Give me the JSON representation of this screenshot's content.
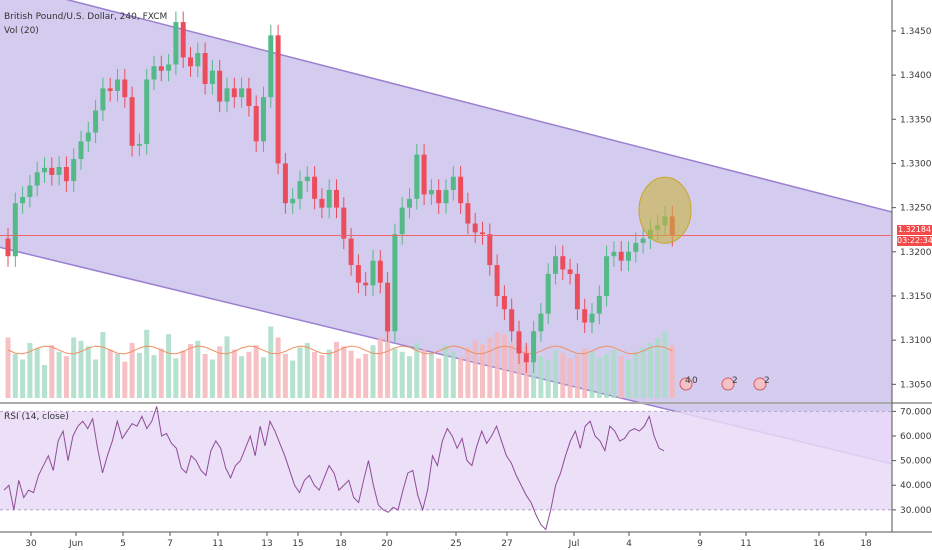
{
  "chart_data": [
    {
      "type": "candlestick",
      "title": "British Pound/U.S. Dollar, 240, FXCM",
      "volume_label": "Vol (20)",
      "price_tick_labels": [
        "1.34500",
        "1.34000",
        "1.33500",
        "1.33000",
        "1.32500",
        "1.32000",
        "1.31500",
        "1.31000",
        "1.30500"
      ],
      "price_ticks": [
        1.345,
        1.34,
        1.335,
        1.33,
        1.325,
        1.32,
        1.315,
        1.31,
        1.305
      ],
      "ylim": [
        1.303,
        1.3485
      ],
      "last_price": "1.32184",
      "last_price_value": 1.32184,
      "countdown": "03:22:34",
      "x_tick_labels": [
        "30",
        "Jun",
        "5",
        "7",
        "11",
        "13",
        "15",
        "18",
        "20",
        "25",
        "27",
        "Jul",
        "4",
        "9",
        "11",
        "16",
        "18"
      ],
      "ohlc_close": [
        1.3195,
        1.3255,
        1.3262,
        1.3275,
        1.329,
        1.3295,
        1.3287,
        1.3296,
        1.328,
        1.3305,
        1.3325,
        1.3335,
        1.336,
        1.3385,
        1.3382,
        1.3395,
        1.3375,
        1.332,
        1.3322,
        1.3395,
        1.341,
        1.3405,
        1.3412,
        1.346,
        1.342,
        1.341,
        1.3425,
        1.339,
        1.3405,
        1.337,
        1.3385,
        1.3375,
        1.3385,
        1.3365,
        1.3325,
        1.3375,
        1.3445,
        1.33,
        1.3255,
        1.326,
        1.328,
        1.3285,
        1.326,
        1.325,
        1.327,
        1.325,
        1.3215,
        1.3185,
        1.3165,
        1.3162,
        1.319,
        1.3165,
        1.311,
        1.322,
        1.325,
        1.326,
        1.331,
        1.3265,
        1.327,
        1.3255,
        1.327,
        1.3285,
        1.3255,
        1.3232,
        1.3222,
        1.322,
        1.3185,
        1.315,
        1.3135,
        1.311,
        1.3085,
        1.3075,
        1.311,
        1.313,
        1.3175,
        1.3195,
        1.318,
        1.3175,
        1.3135,
        1.312,
        1.313,
        1.315,
        1.3195,
        1.32,
        1.319,
        1.32,
        1.321,
        1.3215,
        1.3225,
        1.323,
        1.324,
        1.3218
      ],
      "ohlc_open": [
        1.3215,
        1.3195,
        1.3255,
        1.3262,
        1.3275,
        1.329,
        1.3295,
        1.3287,
        1.3296,
        1.328,
        1.3305,
        1.3325,
        1.3335,
        1.336,
        1.3385,
        1.3382,
        1.3395,
        1.3375,
        1.332,
        1.3322,
        1.3395,
        1.341,
        1.3405,
        1.3412,
        1.346,
        1.342,
        1.341,
        1.3425,
        1.339,
        1.3405,
        1.337,
        1.3385,
        1.3375,
        1.3385,
        1.3365,
        1.3325,
        1.3375,
        1.3445,
        1.33,
        1.3255,
        1.326,
        1.328,
        1.3285,
        1.326,
        1.325,
        1.327,
        1.325,
        1.3215,
        1.3185,
        1.3165,
        1.3162,
        1.319,
        1.3165,
        1.311,
        1.322,
        1.325,
        1.326,
        1.331,
        1.3265,
        1.327,
        1.3255,
        1.327,
        1.3285,
        1.3255,
        1.3232,
        1.3222,
        1.322,
        1.3185,
        1.315,
        1.3135,
        1.311,
        1.3085,
        1.3075,
        1.311,
        1.313,
        1.3175,
        1.3195,
        1.318,
        1.3175,
        1.3135,
        1.312,
        1.313,
        1.315,
        1.3195,
        1.32,
        1.319,
        1.32,
        1.321,
        1.3215,
        1.3225,
        1.323,
        1.324
      ],
      "volume": [
        0.55,
        0.4,
        0.35,
        0.5,
        0.45,
        0.3,
        0.48,
        0.42,
        0.38,
        0.55,
        0.52,
        0.47,
        0.35,
        0.6,
        0.44,
        0.4,
        0.33,
        0.5,
        0.41,
        0.62,
        0.39,
        0.45,
        0.58,
        0.36,
        0.43,
        0.49,
        0.52,
        0.4,
        0.35,
        0.47,
        0.56,
        0.44,
        0.38,
        0.42,
        0.48,
        0.37,
        0.65,
        0.55,
        0.4,
        0.34,
        0.46,
        0.5,
        0.42,
        0.39,
        0.44,
        0.51,
        0.47,
        0.43,
        0.36,
        0.4,
        0.48,
        0.55,
        0.7,
        0.45,
        0.42,
        0.38,
        0.5,
        0.44,
        0.4,
        0.36,
        0.48,
        0.42,
        0.37,
        0.46,
        0.52,
        0.49,
        0.55,
        0.6,
        0.58,
        0.5,
        0.43,
        0.47,
        0.4,
        0.38,
        0.35,
        0.44,
        0.41,
        0.36,
        0.39,
        0.45,
        0.42,
        0.37,
        0.4,
        0.44,
        0.38,
        0.35,
        0.42,
        0.46,
        0.5,
        0.55,
        0.6,
        0.48
      ],
      "channel": {
        "upper": [
          [
            0,
            1.3505
          ],
          [
            1,
            1.3245
          ]
        ],
        "lower": [
          [
            0,
            1.3205
          ],
          [
            1,
            1.296
          ]
        ]
      },
      "event_labels": [
        "4",
        "0",
        "2",
        "2"
      ]
    },
    {
      "type": "line",
      "title": "RSI (14, close)",
      "rsi_tick_labels": [
        "70.0000",
        "60.0000",
        "50.0000",
        "40.0000",
        "30.0000"
      ],
      "rsi_ticks": [
        70,
        60,
        50,
        40,
        30
      ],
      "ylim": [
        21,
        73
      ],
      "bands": [
        30,
        70
      ],
      "values": [
        38,
        40,
        30,
        42,
        35,
        38,
        37,
        44,
        48,
        52,
        46,
        58,
        62,
        50,
        60,
        64,
        66,
        63,
        67,
        55,
        45,
        52,
        58,
        66,
        59,
        62,
        65,
        64,
        68,
        63,
        66,
        72,
        60,
        61,
        57,
        55,
        47,
        45,
        52,
        50,
        46,
        44,
        54,
        58,
        55,
        47,
        43,
        48,
        50,
        55,
        60,
        52,
        64,
        56,
        66,
        62,
        57,
        52,
        46,
        40,
        37,
        42,
        44,
        40,
        38,
        43,
        48,
        45,
        38,
        40,
        42,
        35,
        33,
        42,
        50,
        40,
        32,
        30,
        29,
        31,
        30,
        38,
        45,
        46,
        36,
        30,
        38,
        52,
        48,
        58,
        63,
        60,
        55,
        59,
        50,
        48,
        56,
        62,
        57,
        60,
        64,
        58,
        52,
        49,
        44,
        40,
        36,
        33,
        28,
        24,
        22,
        30,
        40,
        45,
        52,
        58,
        62,
        55,
        64,
        66,
        60,
        58,
        54,
        64,
        62,
        58,
        59,
        62,
        63,
        62,
        64,
        68,
        60,
        55,
        54
      ]
    }
  ]
}
